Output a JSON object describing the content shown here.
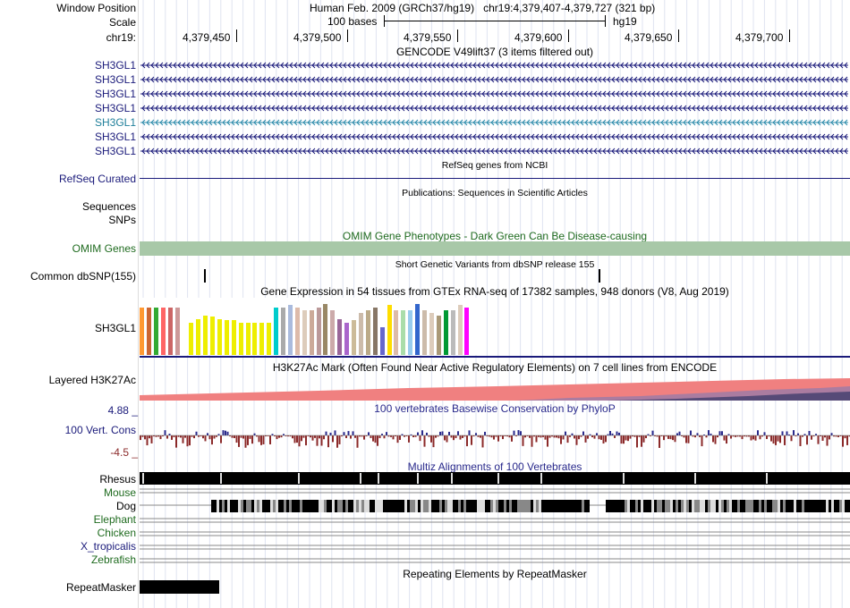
{
  "header": {
    "window_position_label": "Window Position",
    "window_position_value": "Human Feb. 2009 (GRCh37/hg19)   chr19:4,379,407-4,379,727 (321 bp)",
    "scale_label": "Scale",
    "scale_value": "100 bases",
    "scale_assembly": "hg19",
    "chrom_label": "chr19:",
    "positions": [
      "4,379,450",
      "4,379,500",
      "4,379,550",
      "4,379,600",
      "4,379,650",
      "4,379,700"
    ]
  },
  "gencode": {
    "title": "GENCODE V49lift37 (3 items filtered out)",
    "genes": [
      "SH3GL1",
      "SH3GL1",
      "SH3GL1",
      "SH3GL1",
      "SH3GL1",
      "SH3GL1",
      "SH3GL1"
    ]
  },
  "refseq": {
    "title": "RefSeq genes from NCBI",
    "label": "RefSeq Curated"
  },
  "publications": {
    "title": "Publications: Sequences in Scientific Articles",
    "label": "Sequences"
  },
  "snps": {
    "label": "SNPs"
  },
  "omim": {
    "title": "OMIM Gene Phenotypes - Dark Green Can Be Disease-causing",
    "label": "OMIM Genes",
    "color": "#a8c8a8"
  },
  "dbsnp": {
    "title": "Short Genetic Variants from dbSNP release 155",
    "label": "Common dbSNP(155)"
  },
  "gtex": {
    "title": "Gene Expression in 54 tissues from GTEx RNA-seq of 17382 samples, 948 donors (V8, Aug 2019)",
    "label": "SH3GL1",
    "bars": [
      {
        "color": "#ff9933",
        "level": 0.93
      },
      {
        "color": "#cc6633",
        "level": 0.93
      },
      {
        "color": "#33aa33",
        "level": 0.93
      },
      {
        "color": "#ff6666",
        "level": 0.93
      },
      {
        "color": "#cc6666",
        "level": 0.93
      },
      {
        "color": "#cc9999",
        "level": 0.93
      },
      {
        "color": "#eeeeee",
        "level": 0.0
      },
      {
        "color": "#eeee00",
        "level": 0.63
      },
      {
        "color": "#eeee00",
        "level": 0.71
      },
      {
        "color": "#eeee00",
        "level": 0.78
      },
      {
        "color": "#eeee00",
        "level": 0.75
      },
      {
        "color": "#eeee00",
        "level": 0.71
      },
      {
        "color": "#eeee00",
        "level": 0.69
      },
      {
        "color": "#eeee00",
        "level": 0.69
      },
      {
        "color": "#eeee00",
        "level": 0.63
      },
      {
        "color": "#eeee00",
        "level": 0.63
      },
      {
        "color": "#eeee00",
        "level": 0.63
      },
      {
        "color": "#eeee00",
        "level": 0.63
      },
      {
        "color": "#eeee00",
        "level": 0.63
      },
      {
        "color": "#00cccc",
        "level": 0.93
      },
      {
        "color": "#aaaaaa",
        "level": 0.93
      },
      {
        "color": "#aabbdd",
        "level": 0.98
      },
      {
        "color": "#ddbbaa",
        "level": 0.93
      },
      {
        "color": "#ddccbb",
        "level": 0.87
      },
      {
        "color": "#ccaa99",
        "level": 0.87
      },
      {
        "color": "#bb9999",
        "level": 0.93
      },
      {
        "color": "#998866",
        "level": 1.0
      },
      {
        "color": "#ccaaaa",
        "level": 0.87
      },
      {
        "color": "#996699",
        "level": 0.71
      },
      {
        "color": "#aa66cc",
        "level": 0.63
      },
      {
        "color": "#ccbb99",
        "level": 0.69
      },
      {
        "color": "#ccbbaa",
        "level": 0.82
      },
      {
        "color": "#bbaa88",
        "level": 0.87
      },
      {
        "color": "#887766",
        "level": 0.93
      },
      {
        "color": "#6666cc",
        "level": 0.54
      },
      {
        "color": "#ffdd00",
        "level": 0.98
      },
      {
        "color": "#ddbbaa",
        "level": 0.87
      },
      {
        "color": "#aaddaa",
        "level": 0.87
      },
      {
        "color": "#99ccee",
        "level": 0.87
      },
      {
        "color": "#3366cc",
        "level": 1.0
      },
      {
        "color": "#ccbbaa",
        "level": 0.87
      },
      {
        "color": "#ddccbb",
        "level": 0.82
      },
      {
        "color": "#aa9977",
        "level": 0.78
      },
      {
        "color": "#009933",
        "level": 0.87
      },
      {
        "color": "#bbbbbb",
        "level": 0.87
      },
      {
        "color": "#ddccbb",
        "level": 0.98
      },
      {
        "color": "#ff00ff",
        "level": 0.93
      }
    ]
  },
  "h3k27ac": {
    "title": "H3K27Ac Mark (Often Found Near Active Regulatory Elements) on 7 cell lines from ENCODE",
    "label": "Layered H3K27Ac"
  },
  "phylop": {
    "title": "100 vertebrates Basewise Conservation by PhyloP",
    "label": "100 Vert. Cons",
    "max_label": "4.88 _",
    "min_label": "-4.5 _"
  },
  "multiz": {
    "title": "Multiz Alignments of 100 Vertebrates",
    "species": [
      {
        "name": "Rhesus",
        "color": "#1a1a7a"
      },
      {
        "name": "Mouse",
        "color": "#1f6b1f"
      },
      {
        "name": "Dog",
        "color": "#1a1a7a"
      },
      {
        "name": "Elephant",
        "color": "#1f6b1f"
      },
      {
        "name": "Chicken",
        "color": "#1f6b1f"
      },
      {
        "name": "X_tropicalis",
        "color": "#1a1a7a"
      },
      {
        "name": "Zebrafish",
        "color": "#1f6b1f"
      }
    ]
  },
  "repeatmasker": {
    "title": "Repeating Elements by RepeatMasker",
    "label": "RepeatMasker"
  }
}
